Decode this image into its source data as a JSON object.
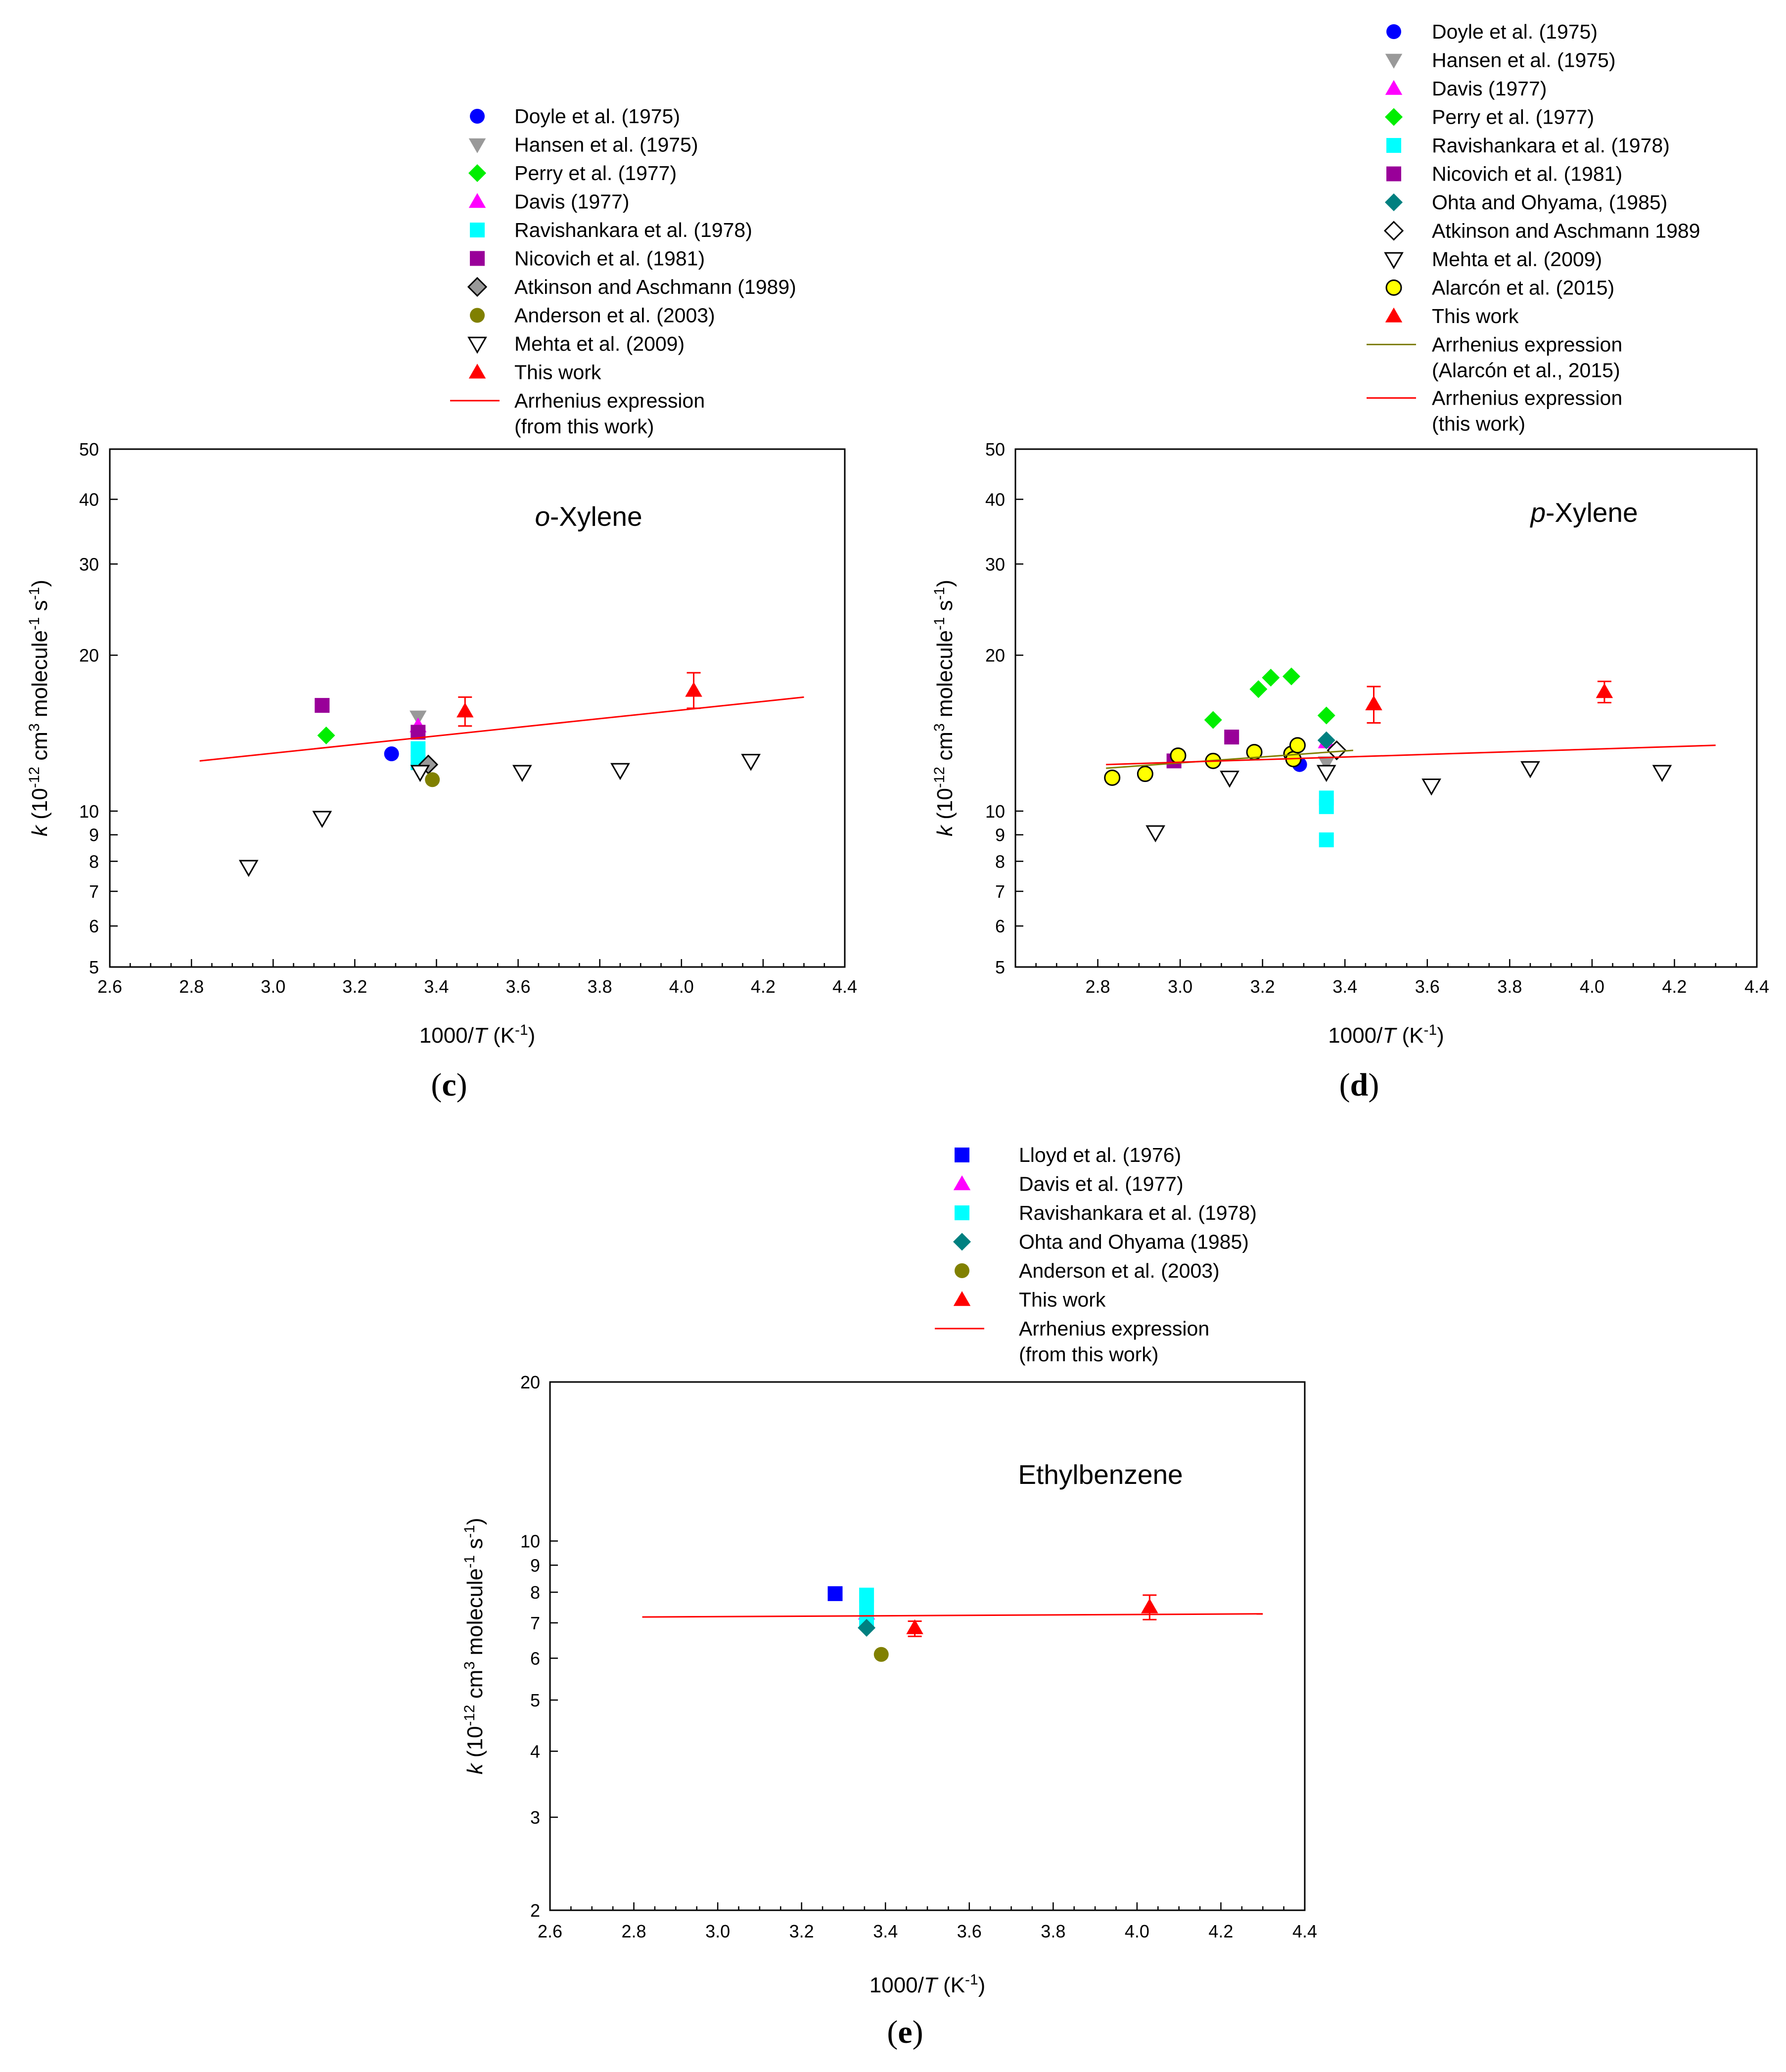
{
  "chart_data": [
    {
      "type": "scatter",
      "panel_label": "c",
      "annotation": "o-Xylene",
      "annotation_italic": "o",
      "annotation_rest": "-Xylene",
      "xlabel": "1000/T (K-1)",
      "ylabel": "k (10-12 cm3 molecule-1 s-1)",
      "xlim": [
        2.6,
        4.4
      ],
      "ylim": [
        5,
        50
      ],
      "yscale": "log",
      "xticks": [
        "2.6",
        "2.8",
        "3.0",
        "3.2",
        "3.4",
        "3.6",
        "3.8",
        "4.0",
        "4.2",
        "4.4"
      ],
      "yticks": [
        "5",
        "6",
        "7",
        "8",
        "9",
        "10",
        "20",
        "30",
        "40",
        "50"
      ],
      "legend_position": "above-plot",
      "series": [
        {
          "name": "Doyle et al. (1975)",
          "marker": "circle",
          "color": "#0000ff",
          "points": [
            [
              3.29,
              12.9
            ]
          ]
        },
        {
          "name": "Hansen et al. (1975)",
          "marker": "triangle-down",
          "color": "#999999",
          "points": [
            [
              3.355,
              15.2
            ]
          ]
        },
        {
          "name": "Perry et al. (1977)",
          "marker": "diamond",
          "color": "#00ee00",
          "points": [
            [
              3.13,
              14.0
            ]
          ]
        },
        {
          "name": "Davis (1977)",
          "marker": "triangle-up",
          "color": "#ff00ff",
          "points": [
            [
              3.355,
              14.6
            ]
          ]
        },
        {
          "name": "Ravishankara et al. (1978)",
          "marker": "square",
          "color": "#00ffff",
          "points": [
            [
              3.355,
              13.2
            ],
            [
              3.355,
              12.4
            ]
          ]
        },
        {
          "name": "Nicovich et al. (1981)",
          "marker": "square",
          "color": "#990099",
          "points": [
            [
              3.12,
              16.0
            ],
            [
              3.355,
              14.2
            ]
          ]
        },
        {
          "name": "Atkinson and Aschmann (1989)",
          "marker": "diamond-open",
          "color": "#999999",
          "points": [
            [
              3.38,
              12.3
            ]
          ]
        },
        {
          "name": "Anderson et al. (2003)",
          "marker": "circle",
          "color": "#808000",
          "points": [
            [
              3.39,
              11.5
            ]
          ]
        },
        {
          "name": "Mehta et al. (2009)",
          "marker": "triangle-down-open",
          "color": "#000000",
          "points": [
            [
              2.94,
              7.8
            ],
            [
              3.12,
              9.7
            ],
            [
              3.36,
              11.9
            ],
            [
              3.61,
              11.9
            ],
            [
              3.85,
              12.0
            ],
            [
              4.17,
              12.5
            ]
          ]
        },
        {
          "name": "This work",
          "marker": "triangle-up",
          "color": "#ff0000",
          "points": [
            [
              3.47,
              15.6
            ],
            [
              4.03,
              17.1
            ]
          ],
          "errors": [
            [
              14.6,
              16.6
            ],
            [
              15.8,
              18.5
            ]
          ]
        },
        {
          "name": "Arrhenius expression (from this work)",
          "marker": "line",
          "color": "#ff0000",
          "legend_lines": [
            "Arrhenius expression",
            "(from this work)"
          ],
          "points": [
            [
              2.82,
              12.5
            ],
            [
              4.3,
              16.6
            ]
          ]
        }
      ]
    },
    {
      "type": "scatter",
      "panel_label": "d",
      "annotation": "p-Xylene",
      "annotation_italic": "p",
      "annotation_rest": "-Xylene",
      "xlabel": "1000/T (K-1)",
      "ylabel": "k (10-12 cm3 molecule-1 s-1)",
      "xlim": [
        2.6,
        4.4
      ],
      "ylim": [
        5,
        50
      ],
      "yscale": "log",
      "xticks": [
        "2.8",
        "3.0",
        "3.2",
        "3.4",
        "3.6",
        "3.8",
        "4.0",
        "4.2",
        "4.4"
      ],
      "yticks": [
        "5",
        "6",
        "7",
        "8",
        "9",
        "10",
        "20",
        "30",
        "40",
        "50"
      ],
      "legend_position": "above-plot",
      "series": [
        {
          "name": "Doyle et al. (1975)",
          "marker": "circle",
          "color": "#0000ff",
          "points": [
            [
              3.29,
              12.3
            ]
          ]
        },
        {
          "name": "Hansen et al. (1975)",
          "marker": "triangle-down",
          "color": "#999999",
          "points": [
            [
              3.355,
              12.4
            ]
          ]
        },
        {
          "name": "Davis (1977)",
          "marker": "triangle-up",
          "color": "#ff00ff",
          "points": [
            [
              3.355,
              13.6
            ]
          ]
        },
        {
          "name": "Perry et al. (1977)",
          "marker": "diamond",
          "color": "#00ee00",
          "points": [
            [
              3.08,
              15.0
            ],
            [
              3.19,
              17.2
            ],
            [
              3.22,
              18.1
            ],
            [
              3.27,
              18.2
            ],
            [
              3.355,
              15.3
            ]
          ]
        },
        {
          "name": "Ravishankara et al. (1978)",
          "marker": "square",
          "color": "#00ffff",
          "points": [
            [
              3.355,
              10.6
            ],
            [
              3.355,
              10.2
            ],
            [
              3.355,
              8.8
            ]
          ]
        },
        {
          "name": "Nicovich et al. (1981)",
          "marker": "square",
          "color": "#990099",
          "points": [
            [
              2.985,
              12.5
            ],
            [
              3.125,
              13.9
            ]
          ]
        },
        {
          "name": "Ohta and Ohyama, (1985)",
          "marker": "diamond",
          "color": "#008080",
          "points": [
            [
              3.355,
              13.7
            ]
          ]
        },
        {
          "name": "Atkinson and Aschmann 1989",
          "marker": "diamond-open",
          "color": "#000000",
          "points": [
            [
              3.38,
              13.1
            ]
          ]
        },
        {
          "name": "Mehta et al. (2009)",
          "marker": "triangle-down-open",
          "color": "#000000",
          "points": [
            [
              2.94,
              9.1
            ],
            [
              3.12,
              11.6
            ],
            [
              3.355,
              11.9
            ],
            [
              3.61,
              11.2
            ],
            [
              3.85,
              12.1
            ],
            [
              4.17,
              11.9
            ]
          ]
        },
        {
          "name": "Alarcón et al. (2015)",
          "marker": "circle-open",
          "color": "#ffff00",
          "points": [
            [
              2.835,
              11.6
            ],
            [
              2.915,
              11.8
            ],
            [
              2.995,
              12.8
            ],
            [
              3.08,
              12.5
            ],
            [
              3.18,
              13.0
            ],
            [
              3.27,
              12.9
            ],
            [
              3.275,
              12.6
            ],
            [
              3.285,
              13.4
            ]
          ]
        },
        {
          "name": "This work",
          "marker": "triangle-up",
          "color": "#ff0000",
          "points": [
            [
              3.47,
              16.1
            ],
            [
              4.03,
              17.0
            ]
          ],
          "errors": [
            [
              14.8,
              17.4
            ],
            [
              16.2,
              17.8
            ]
          ]
        },
        {
          "name": "Arrhenius expression (Alarcón et al., 2015)",
          "marker": "line",
          "color": "#808000",
          "legend_lines": [
            "Arrhenius expression",
            "(Alarcón et al., 2015)"
          ],
          "points": [
            [
              2.82,
              12.1
            ],
            [
              3.42,
              13.1
            ]
          ]
        },
        {
          "name": "Arrhenius expression (this work)",
          "marker": "line",
          "color": "#ff0000",
          "legend_lines": [
            "Arrhenius expression",
            "(this work)"
          ],
          "points": [
            [
              2.82,
              12.3
            ],
            [
              4.3,
              13.4
            ]
          ]
        }
      ]
    },
    {
      "type": "scatter",
      "panel_label": "e",
      "annotation": "Ethylbenzene",
      "xlabel": "1000/T (K-1)",
      "ylabel": "k (10-12 cm3 molecule-1 s-1)",
      "xlim": [
        2.6,
        4.4
      ],
      "ylim": [
        2,
        20
      ],
      "yscale": "log",
      "xticks": [
        "2.6",
        "2.8",
        "3.0",
        "3.2",
        "3.4",
        "3.6",
        "3.8",
        "4.0",
        "4.2",
        "4.4"
      ],
      "yticks": [
        "2",
        "3",
        "4",
        "5",
        "6",
        "7",
        "8",
        "9",
        "10",
        "20"
      ],
      "legend_position": "above-plot",
      "series": [
        {
          "name": "Lloyd et al. (1976)",
          "marker": "square",
          "color": "#0000ff",
          "points": [
            [
              3.28,
              7.95
            ]
          ]
        },
        {
          "name": "Davis et al. (1977)",
          "marker": "triangle-up",
          "color": "#ff00ff",
          "points": [
            [
              3.355,
              7.3
            ]
          ]
        },
        {
          "name": "Ravishankara et al. (1978)",
          "marker": "square",
          "color": "#00ffff",
          "points": [
            [
              3.355,
              7.9
            ],
            [
              3.355,
              7.5
            ],
            [
              3.355,
              7.1
            ]
          ]
        },
        {
          "name": "Ohta and Ohyama (1985)",
          "marker": "diamond",
          "color": "#008080",
          "points": [
            [
              3.355,
              6.85
            ]
          ]
        },
        {
          "name": "Anderson et al. (2003)",
          "marker": "circle",
          "color": "#808000",
          "points": [
            [
              3.39,
              6.1
            ]
          ]
        },
        {
          "name": "This work",
          "marker": "triangle-up",
          "color": "#ff0000",
          "points": [
            [
              3.47,
              6.85
            ],
            [
              4.03,
              7.5
            ]
          ],
          "errors": [
            [
              6.6,
              7.05
            ],
            [
              7.1,
              7.9
            ]
          ]
        },
        {
          "name": "Arrhenius expression (from this work)",
          "marker": "line",
          "color": "#ff0000",
          "legend_lines": [
            "Arrhenius expression",
            "(from this work)"
          ],
          "points": [
            [
              2.82,
              7.18
            ],
            [
              4.3,
              7.28
            ]
          ]
        }
      ]
    }
  ]
}
